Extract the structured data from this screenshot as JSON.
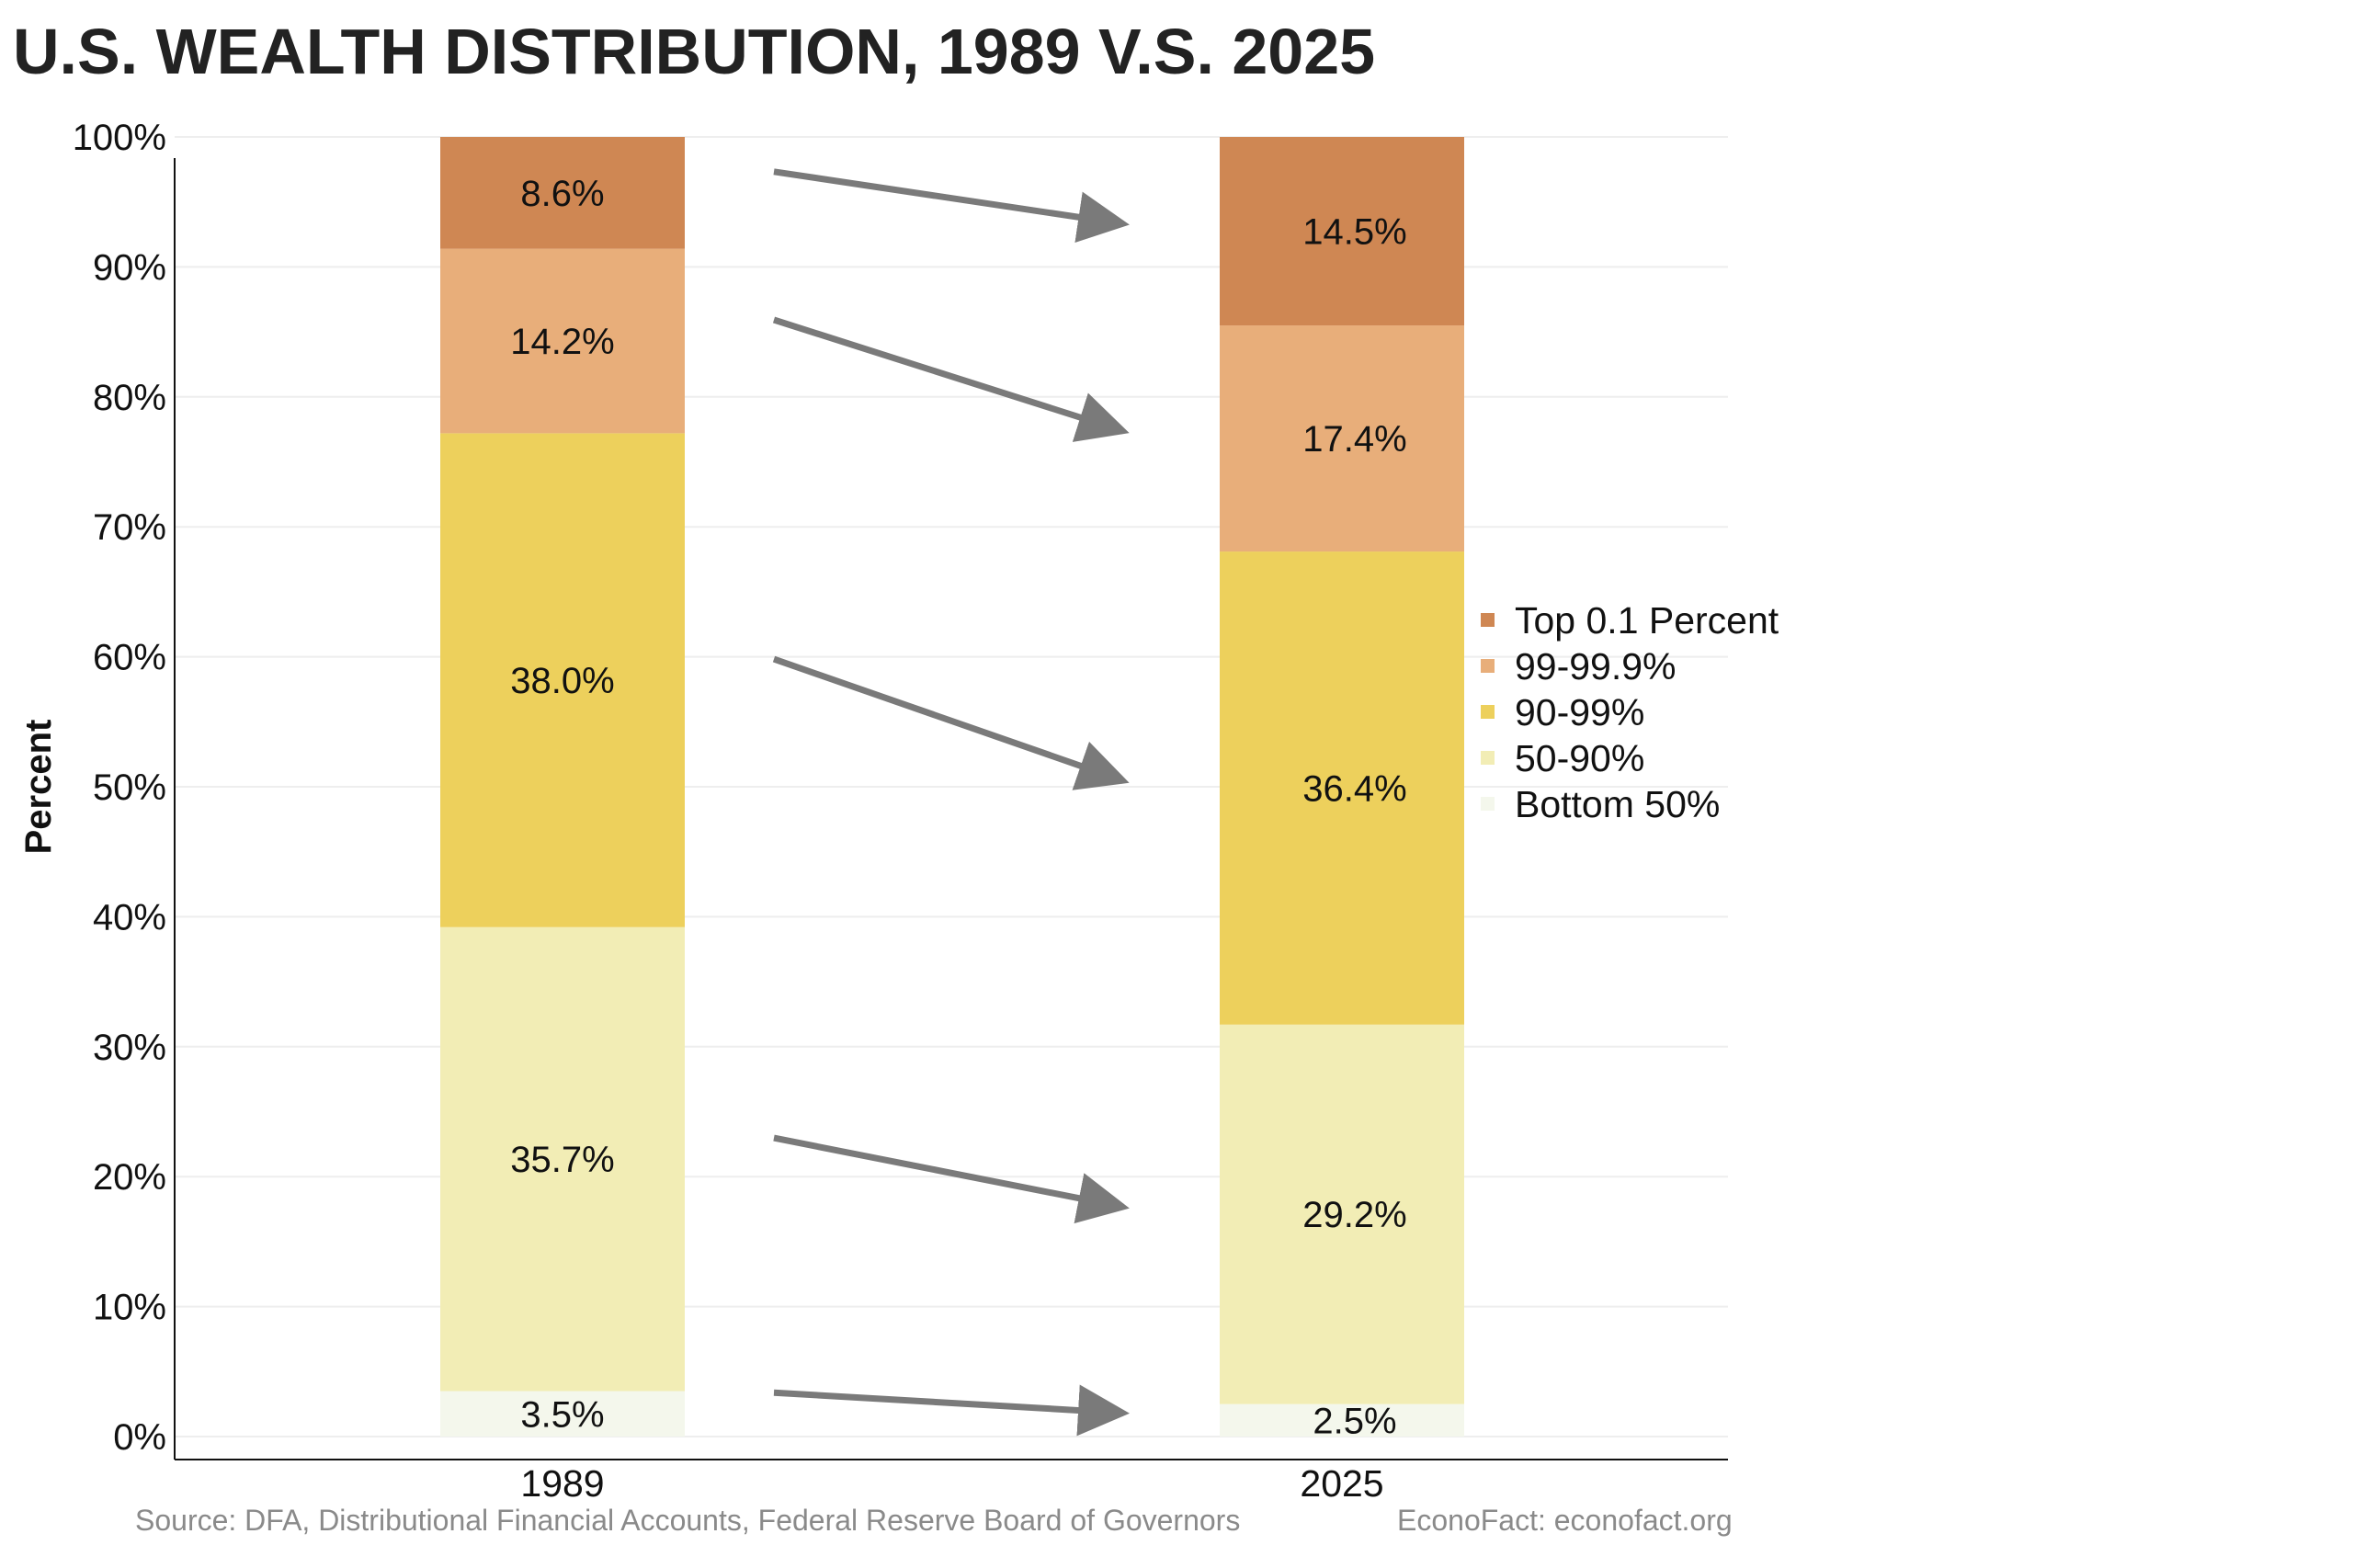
{
  "chart_data": {
    "type": "bar",
    "stacked": true,
    "title": "U.S. WEALTH DISTRIBUTION, 1989 V.S. 2025",
    "ylabel": "Percent",
    "xlabel": "",
    "ylim": [
      0,
      100
    ],
    "yticks": [
      0,
      10,
      20,
      30,
      40,
      50,
      60,
      70,
      80,
      90,
      100
    ],
    "ytick_labels": [
      "0%",
      "10%",
      "20%",
      "30%",
      "40%",
      "50%",
      "60%",
      "70%",
      "80%",
      "90%",
      "100%"
    ],
    "categories": [
      "1989",
      "2025"
    ],
    "series": [
      {
        "name": "Bottom 50%",
        "values": [
          3.5,
          2.5
        ],
        "labels": [
          "3.5%",
          "2.5%"
        ],
        "color": "#F4F7EC"
      },
      {
        "name": "50-90%",
        "values": [
          35.7,
          29.2
        ],
        "labels": [
          "35.7%",
          "29.2%"
        ],
        "color": "#F2EDB5"
      },
      {
        "name": "90-99%",
        "values": [
          38.0,
          36.4
        ],
        "labels": [
          "38.0%",
          "36.4%"
        ],
        "color": "#EDD05C"
      },
      {
        "name": "99-99.9%",
        "values": [
          14.2,
          17.4
        ],
        "labels": [
          "14.2%",
          "17.4%"
        ],
        "color": "#E8AE7A"
      },
      {
        "name": "Top 0.1 Percent",
        "values": [
          8.6,
          14.5
        ],
        "labels": [
          "8.6%",
          "14.5%"
        ],
        "color": "#CF8753"
      }
    ],
    "legend_order": [
      "Top 0.1 Percent",
      "99-99.9%",
      "90-99%",
      "50-90%",
      "Bottom 50%"
    ],
    "legend_position": "right",
    "grid": true,
    "annotations": "gray arrows linking each 1989 segment to the matching 2025 segment",
    "arrow_color": "#7A7A7A"
  },
  "footer": {
    "source": "Source: DFA, Distributional Financial Accounts, Federal Reserve Board of Governors",
    "credit": "EconoFact: econofact.org"
  }
}
